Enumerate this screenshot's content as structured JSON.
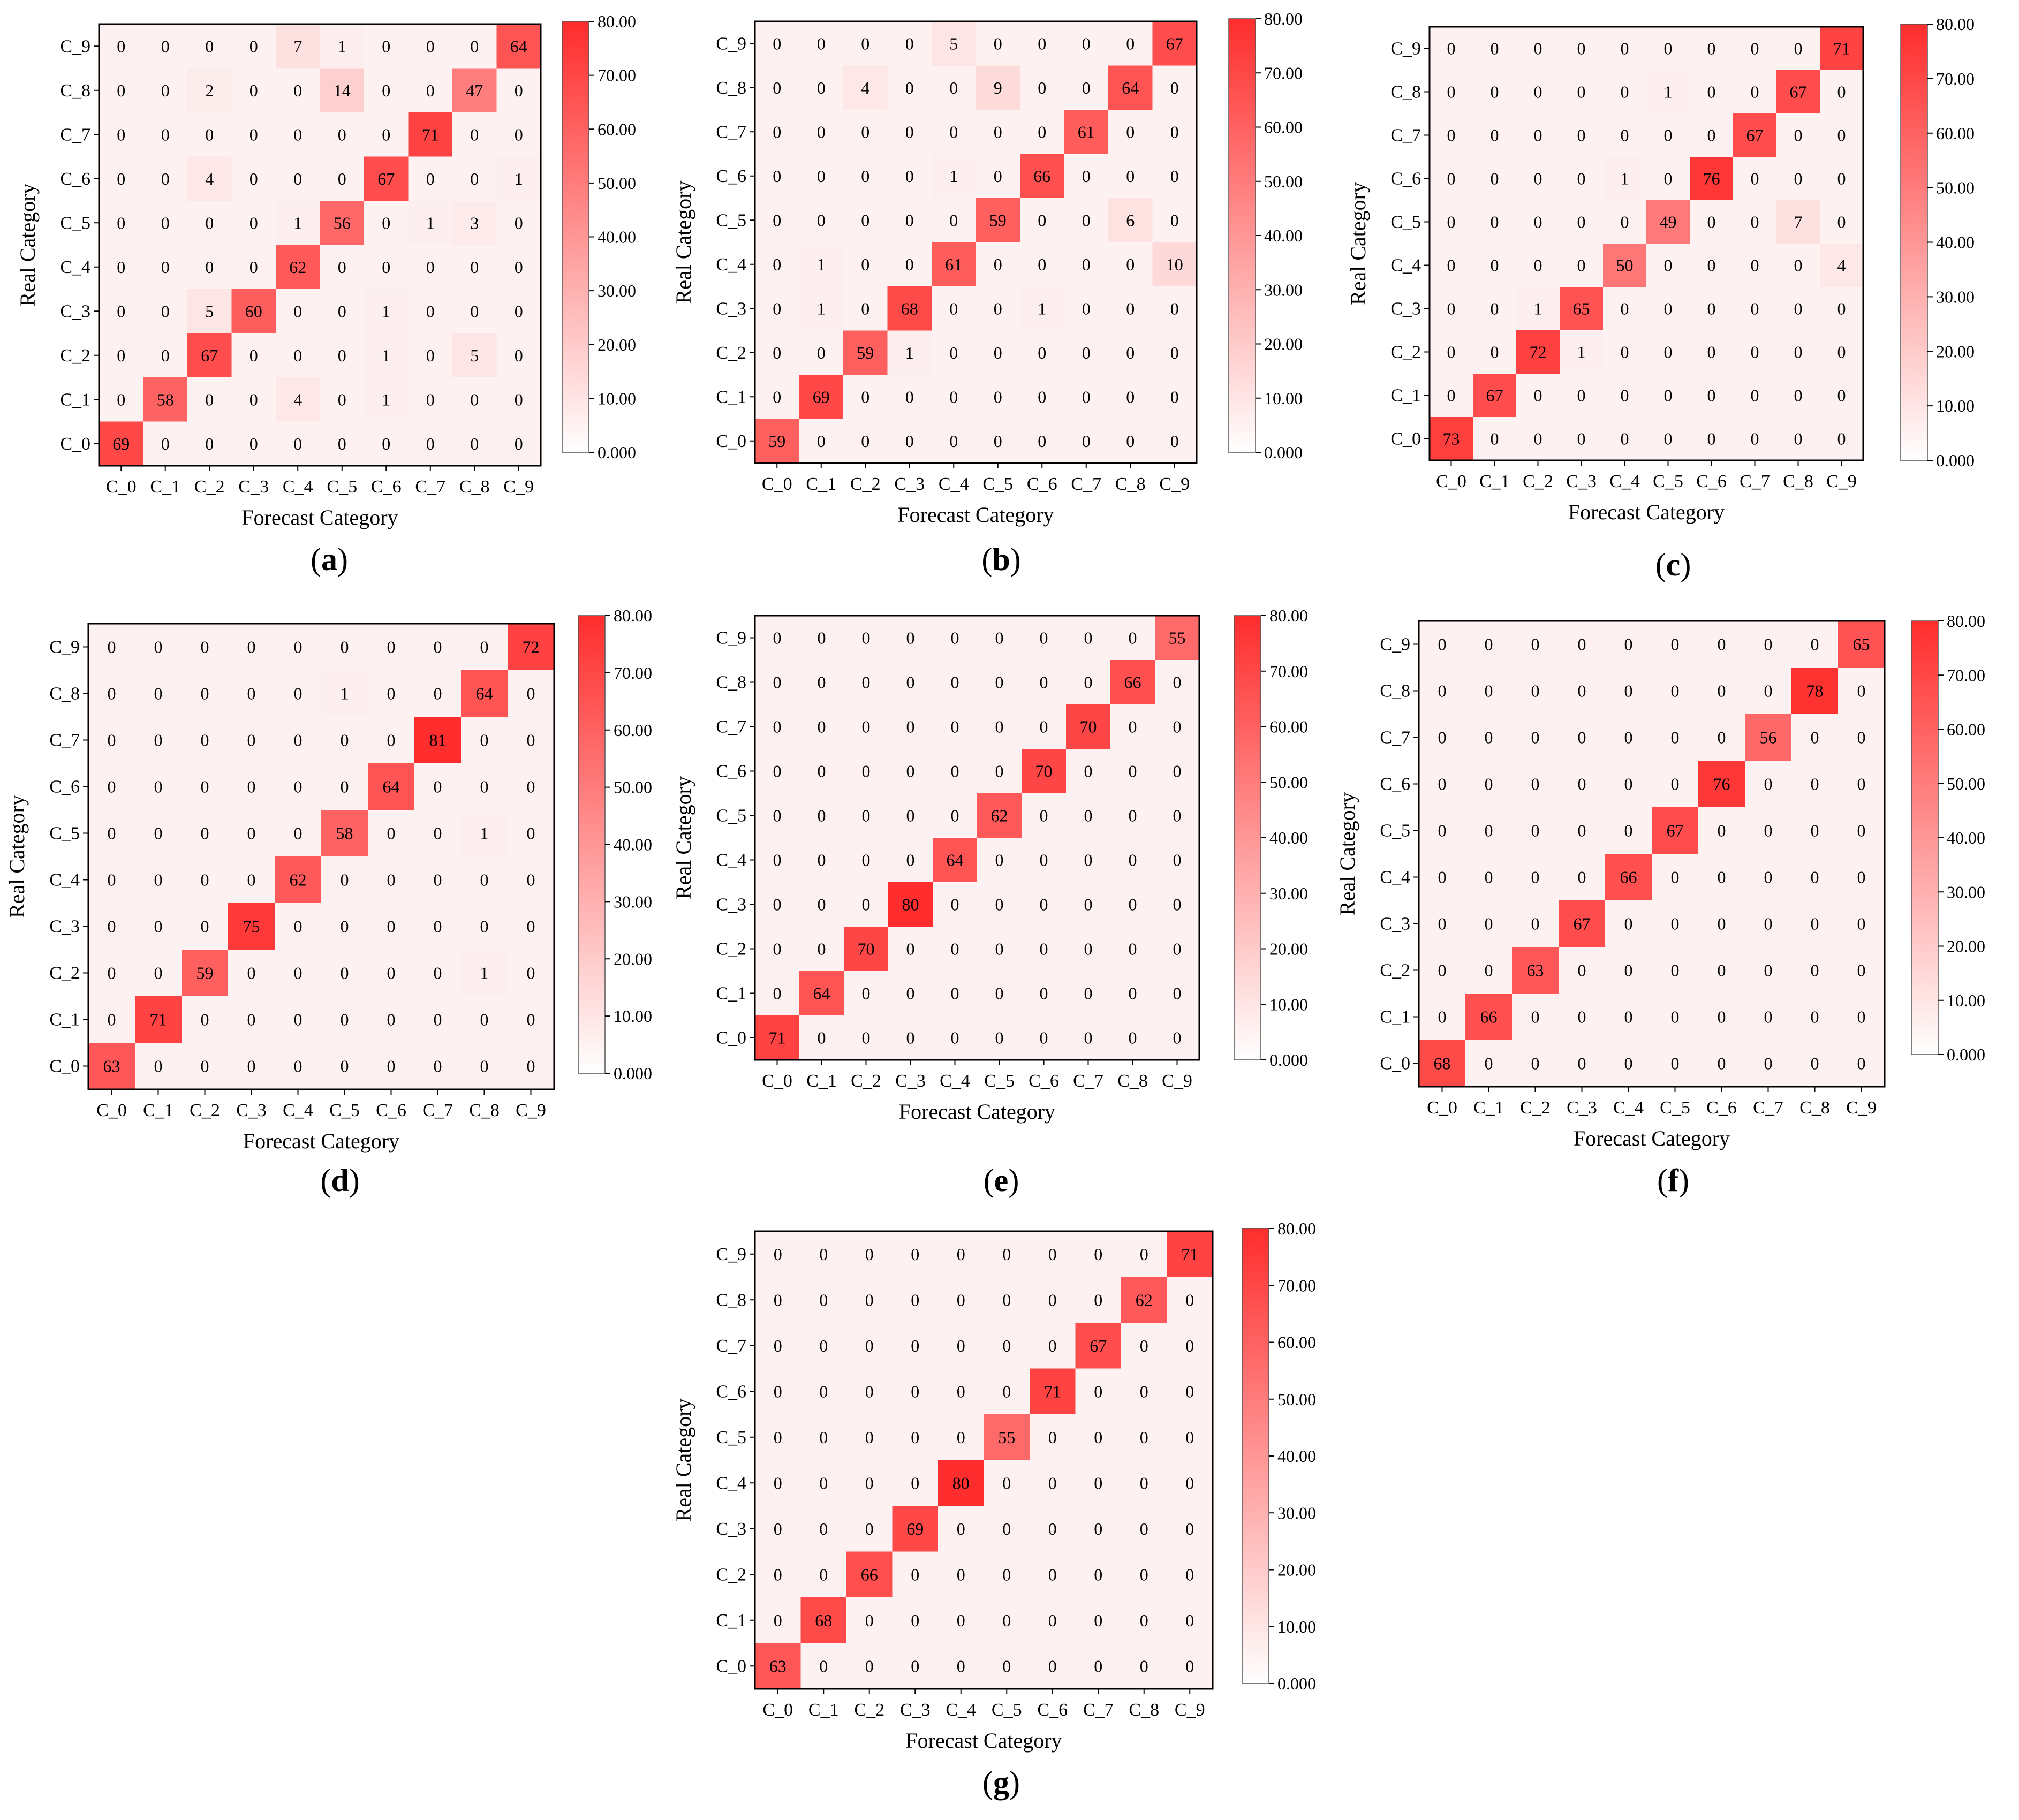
{
  "colors": {
    "low": "#fdf1f1",
    "high": "#ff2d2d",
    "frame": "#000000",
    "background": "#ffffff"
  },
  "chart_data": [
    {
      "type": "heatmap",
      "panel_label": "a",
      "xlabel": "Forecast Category",
      "ylabel": "Real Category",
      "x_categories": [
        "C_0",
        "C_1",
        "C_2",
        "C_3",
        "C_4",
        "C_5",
        "C_6",
        "C_7",
        "C_8",
        "C_9"
      ],
      "y_categories_top_to_bottom": [
        "C_9",
        "C_8",
        "C_7",
        "C_6",
        "C_5",
        "C_4",
        "C_3",
        "C_2",
        "C_1",
        "C_0"
      ],
      "values_top_to_bottom": [
        [
          0,
          0,
          0,
          0,
          7,
          1,
          0,
          0,
          0,
          64
        ],
        [
          0,
          0,
          2,
          0,
          0,
          14,
          0,
          0,
          47,
          0
        ],
        [
          0,
          0,
          0,
          0,
          0,
          0,
          0,
          71,
          0,
          0
        ],
        [
          0,
          0,
          4,
          0,
          0,
          0,
          67,
          0,
          0,
          1
        ],
        [
          0,
          0,
          0,
          0,
          1,
          56,
          0,
          1,
          3,
          0
        ],
        [
          0,
          0,
          0,
          0,
          62,
          0,
          0,
          0,
          0,
          0
        ],
        [
          0,
          0,
          5,
          60,
          0,
          0,
          1,
          0,
          0,
          0
        ],
        [
          0,
          0,
          67,
          0,
          0,
          0,
          1,
          0,
          5,
          0
        ],
        [
          0,
          58,
          0,
          0,
          4,
          0,
          1,
          0,
          0,
          0
        ],
        [
          69,
          0,
          0,
          0,
          0,
          0,
          0,
          0,
          0,
          0
        ]
      ],
      "colorbar": {
        "range": [
          0,
          80
        ],
        "tick_labels": [
          "0.000",
          "10.00",
          "20.00",
          "30.00",
          "40.00",
          "50.00",
          "60.00",
          "70.00",
          "80.00"
        ]
      }
    },
    {
      "type": "heatmap",
      "panel_label": "b",
      "xlabel": "Forecast Category",
      "ylabel": "Real Category",
      "x_categories": [
        "C_0",
        "C_1",
        "C_2",
        "C_3",
        "C_4",
        "C_5",
        "C_6",
        "C_7",
        "C_8",
        "C_9"
      ],
      "y_categories_top_to_bottom": [
        "C_9",
        "C_8",
        "C_7",
        "C_6",
        "C_5",
        "C_4",
        "C_3",
        "C_2",
        "C_1",
        "C_0"
      ],
      "values_top_to_bottom": [
        [
          0,
          0,
          0,
          0,
          5,
          0,
          0,
          0,
          0,
          67
        ],
        [
          0,
          0,
          4,
          0,
          0,
          9,
          0,
          0,
          64,
          0
        ],
        [
          0,
          0,
          0,
          0,
          0,
          0,
          0,
          61,
          0,
          0
        ],
        [
          0,
          0,
          0,
          0,
          1,
          0,
          66,
          0,
          0,
          0
        ],
        [
          0,
          0,
          0,
          0,
          0,
          59,
          0,
          0,
          6,
          0
        ],
        [
          0,
          1,
          0,
          0,
          61,
          0,
          0,
          0,
          0,
          10
        ],
        [
          0,
          1,
          0,
          68,
          0,
          0,
          1,
          0,
          0,
          0
        ],
        [
          0,
          0,
          59,
          1,
          0,
          0,
          0,
          0,
          0,
          0
        ],
        [
          0,
          69,
          0,
          0,
          0,
          0,
          0,
          0,
          0,
          0
        ],
        [
          59,
          0,
          0,
          0,
          0,
          0,
          0,
          0,
          0,
          0
        ]
      ],
      "colorbar": {
        "range": [
          0,
          80
        ],
        "tick_labels": [
          "0.000",
          "10.00",
          "20.00",
          "30.00",
          "40.00",
          "50.00",
          "60.00",
          "70.00",
          "80.00"
        ]
      }
    },
    {
      "type": "heatmap",
      "panel_label": "c",
      "xlabel": "Forecast Category",
      "ylabel": "Real Category",
      "x_categories": [
        "C_0",
        "C_1",
        "C_2",
        "C_3",
        "C_4",
        "C_5",
        "C_6",
        "C_7",
        "C_8",
        "C_9"
      ],
      "y_categories_top_to_bottom": [
        "C_9",
        "C_8",
        "C_7",
        "C_6",
        "C_5",
        "C_4",
        "C_3",
        "C_2",
        "C_1",
        "C_0"
      ],
      "values_top_to_bottom": [
        [
          0,
          0,
          0,
          0,
          0,
          0,
          0,
          0,
          0,
          71
        ],
        [
          0,
          0,
          0,
          0,
          0,
          1,
          0,
          0,
          67,
          0
        ],
        [
          0,
          0,
          0,
          0,
          0,
          0,
          0,
          67,
          0,
          0
        ],
        [
          0,
          0,
          0,
          0,
          1,
          0,
          76,
          0,
          0,
          0
        ],
        [
          0,
          0,
          0,
          0,
          0,
          49,
          0,
          0,
          7,
          0
        ],
        [
          0,
          0,
          0,
          0,
          50,
          0,
          0,
          0,
          0,
          4
        ],
        [
          0,
          0,
          1,
          65,
          0,
          0,
          0,
          0,
          0,
          0
        ],
        [
          0,
          0,
          72,
          1,
          0,
          0,
          0,
          0,
          0,
          0
        ],
        [
          0,
          67,
          0,
          0,
          0,
          0,
          0,
          0,
          0,
          0
        ],
        [
          73,
          0,
          0,
          0,
          0,
          0,
          0,
          0,
          0,
          0
        ]
      ],
      "colorbar": {
        "range": [
          0,
          80
        ],
        "tick_labels": [
          "0.000",
          "10.00",
          "20.00",
          "30.00",
          "40.00",
          "50.00",
          "60.00",
          "70.00",
          "80.00"
        ]
      }
    },
    {
      "type": "heatmap",
      "panel_label": "d",
      "xlabel": "Forecast Category",
      "ylabel": "Real Category",
      "x_categories": [
        "C_0",
        "C_1",
        "C_2",
        "C_3",
        "C_4",
        "C_5",
        "C_6",
        "C_7",
        "C_8",
        "C_9"
      ],
      "y_categories_top_to_bottom": [
        "C_9",
        "C_8",
        "C_7",
        "C_6",
        "C_5",
        "C_4",
        "C_3",
        "C_2",
        "C_1",
        "C_0"
      ],
      "values_top_to_bottom": [
        [
          0,
          0,
          0,
          0,
          0,
          0,
          0,
          0,
          0,
          72
        ],
        [
          0,
          0,
          0,
          0,
          0,
          1,
          0,
          0,
          64,
          0
        ],
        [
          0,
          0,
          0,
          0,
          0,
          0,
          0,
          81,
          0,
          0
        ],
        [
          0,
          0,
          0,
          0,
          0,
          0,
          64,
          0,
          0,
          0
        ],
        [
          0,
          0,
          0,
          0,
          0,
          58,
          0,
          0,
          1,
          0
        ],
        [
          0,
          0,
          0,
          0,
          62,
          0,
          0,
          0,
          0,
          0
        ],
        [
          0,
          0,
          0,
          75,
          0,
          0,
          0,
          0,
          0,
          0
        ],
        [
          0,
          0,
          59,
          0,
          0,
          0,
          0,
          0,
          1,
          0
        ],
        [
          0,
          71,
          0,
          0,
          0,
          0,
          0,
          0,
          0,
          0
        ],
        [
          63,
          0,
          0,
          0,
          0,
          0,
          0,
          0,
          0,
          0
        ]
      ],
      "colorbar": {
        "range": [
          0,
          80
        ],
        "tick_labels": [
          "0.000",
          "10.00",
          "20.00",
          "30.00",
          "40.00",
          "50.00",
          "60.00",
          "70.00",
          "80.00"
        ]
      }
    },
    {
      "type": "heatmap",
      "panel_label": "e",
      "xlabel": "Forecast Category",
      "ylabel": "Real Category",
      "x_categories": [
        "C_0",
        "C_1",
        "C_2",
        "C_3",
        "C_4",
        "C_5",
        "C_6",
        "C_7",
        "C_8",
        "C_9"
      ],
      "y_categories_top_to_bottom": [
        "C_9",
        "C_8",
        "C_7",
        "C_6",
        "C_5",
        "C_4",
        "C_3",
        "C_2",
        "C_1",
        "C_0"
      ],
      "values_top_to_bottom": [
        [
          0,
          0,
          0,
          0,
          0,
          0,
          0,
          0,
          0,
          55
        ],
        [
          0,
          0,
          0,
          0,
          0,
          0,
          0,
          0,
          66,
          0
        ],
        [
          0,
          0,
          0,
          0,
          0,
          0,
          0,
          70,
          0,
          0
        ],
        [
          0,
          0,
          0,
          0,
          0,
          0,
          70,
          0,
          0,
          0
        ],
        [
          0,
          0,
          0,
          0,
          0,
          62,
          0,
          0,
          0,
          0
        ],
        [
          0,
          0,
          0,
          0,
          64,
          0,
          0,
          0,
          0,
          0
        ],
        [
          0,
          0,
          0,
          80,
          0,
          0,
          0,
          0,
          0,
          0
        ],
        [
          0,
          0,
          70,
          0,
          0,
          0,
          0,
          0,
          0,
          0
        ],
        [
          0,
          64,
          0,
          0,
          0,
          0,
          0,
          0,
          0,
          0
        ],
        [
          71,
          0,
          0,
          0,
          0,
          0,
          0,
          0,
          0,
          0
        ]
      ],
      "colorbar": {
        "range": [
          0,
          80
        ],
        "tick_labels": [
          "0.000",
          "10.00",
          "20.00",
          "30.00",
          "40.00",
          "50.00",
          "60.00",
          "70.00",
          "80.00"
        ]
      }
    },
    {
      "type": "heatmap",
      "panel_label": "f",
      "xlabel": "Forecast Category",
      "ylabel": "Real Category",
      "x_categories": [
        "C_0",
        "C_1",
        "C_2",
        "C_3",
        "C_4",
        "C_5",
        "C_6",
        "C_7",
        "C_8",
        "C_9"
      ],
      "y_categories_top_to_bottom": [
        "C_9",
        "C_8",
        "C_7",
        "C_6",
        "C_5",
        "C_4",
        "C_3",
        "C_2",
        "C_1",
        "C_0"
      ],
      "values_top_to_bottom": [
        [
          0,
          0,
          0,
          0,
          0,
          0,
          0,
          0,
          0,
          65
        ],
        [
          0,
          0,
          0,
          0,
          0,
          0,
          0,
          0,
          78,
          0
        ],
        [
          0,
          0,
          0,
          0,
          0,
          0,
          0,
          56,
          0,
          0
        ],
        [
          0,
          0,
          0,
          0,
          0,
          0,
          76,
          0,
          0,
          0
        ],
        [
          0,
          0,
          0,
          0,
          0,
          67,
          0,
          0,
          0,
          0
        ],
        [
          0,
          0,
          0,
          0,
          66,
          0,
          0,
          0,
          0,
          0
        ],
        [
          0,
          0,
          0,
          67,
          0,
          0,
          0,
          0,
          0,
          0
        ],
        [
          0,
          0,
          63,
          0,
          0,
          0,
          0,
          0,
          0,
          0
        ],
        [
          0,
          66,
          0,
          0,
          0,
          0,
          0,
          0,
          0,
          0
        ],
        [
          68,
          0,
          0,
          0,
          0,
          0,
          0,
          0,
          0,
          0
        ]
      ],
      "colorbar": {
        "range": [
          0,
          80
        ],
        "tick_labels": [
          "0.000",
          "10.00",
          "20.00",
          "30.00",
          "40.00",
          "50.00",
          "60.00",
          "70.00",
          "80.00"
        ]
      }
    },
    {
      "type": "heatmap",
      "panel_label": "g",
      "xlabel": "Forecast Category",
      "ylabel": "Real Category",
      "x_categories": [
        "C_0",
        "C_1",
        "C_2",
        "C_3",
        "C_4",
        "C_5",
        "C_6",
        "C_7",
        "C_8",
        "C_9"
      ],
      "y_categories_top_to_bottom": [
        "C_9",
        "C_8",
        "C_7",
        "C_6",
        "C_5",
        "C_4",
        "C_3",
        "C_2",
        "C_1",
        "C_0"
      ],
      "values_top_to_bottom": [
        [
          0,
          0,
          0,
          0,
          0,
          0,
          0,
          0,
          0,
          71
        ],
        [
          0,
          0,
          0,
          0,
          0,
          0,
          0,
          0,
          62,
          0
        ],
        [
          0,
          0,
          0,
          0,
          0,
          0,
          0,
          67,
          0,
          0
        ],
        [
          0,
          0,
          0,
          0,
          0,
          0,
          71,
          0,
          0,
          0
        ],
        [
          0,
          0,
          0,
          0,
          0,
          55,
          0,
          0,
          0,
          0
        ],
        [
          0,
          0,
          0,
          0,
          80,
          0,
          0,
          0,
          0,
          0
        ],
        [
          0,
          0,
          0,
          69,
          0,
          0,
          0,
          0,
          0,
          0
        ],
        [
          0,
          0,
          66,
          0,
          0,
          0,
          0,
          0,
          0,
          0
        ],
        [
          0,
          68,
          0,
          0,
          0,
          0,
          0,
          0,
          0,
          0
        ],
        [
          63,
          0,
          0,
          0,
          0,
          0,
          0,
          0,
          0,
          0
        ]
      ],
      "colorbar": {
        "range": [
          0,
          80
        ],
        "tick_labels": [
          "0.000",
          "10.00",
          "20.00",
          "30.00",
          "40.00",
          "50.00",
          "60.00",
          "70.00",
          "80.00"
        ]
      }
    }
  ]
}
